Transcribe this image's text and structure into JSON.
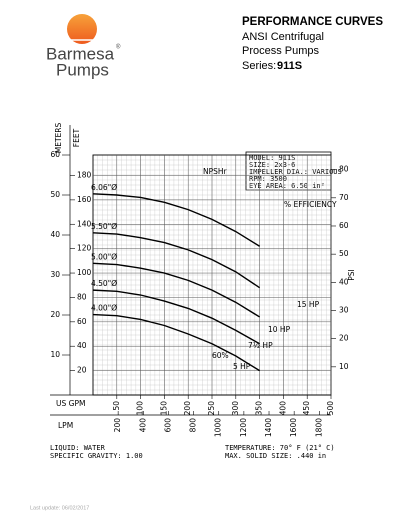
{
  "header": {
    "brand": "Barmesa",
    "reg": "®",
    "brand_sub": "Pumps",
    "title": "PERFORMANCE CURVES",
    "line1": "ANSI Centrifugal",
    "line2": "Process Pumps",
    "series_label": "Series:",
    "series_value": "911S"
  },
  "specs": [
    "MODEL: 911S",
    "SIZE: 2x3-6",
    "IMPELLER DIA.: VARIOUS",
    "RPM: 3500",
    "EYE AREA: 6.50 in²"
  ],
  "chart_data": {
    "type": "line",
    "x_label": "US GPM",
    "y_label": "FEET",
    "meters_label": "METERS",
    "psi_label": "PSI",
    "lpm_label": "LPM",
    "x": [
      0,
      50,
      100,
      150,
      200,
      250,
      300,
      350
    ],
    "series": [
      {
        "name": "6.06\"Ø",
        "color": "#000000",
        "values": [
          165,
          164,
          162,
          158,
          152,
          144,
          134,
          122
        ]
      },
      {
        "name": "5.50\"Ø",
        "color": "#000000",
        "values": [
          133,
          132,
          129,
          125,
          119,
          111,
          101,
          88
        ]
      },
      {
        "name": "5.00\"Ø",
        "color": "#000000",
        "values": [
          108,
          107,
          104,
          100,
          94,
          86,
          76,
          64
        ]
      },
      {
        "name": "4.50\"Ø",
        "color": "#000000",
        "values": [
          86,
          85,
          82,
          77,
          71,
          63,
          53,
          42
        ]
      },
      {
        "name": "4.00\"Ø",
        "color": "#000000",
        "values": [
          66,
          65,
          62,
          57,
          50,
          42,
          32,
          20
        ]
      }
    ],
    "xlim": [
      0,
      500
    ],
    "xticks": [
      50,
      100,
      150,
      200,
      250,
      300,
      350,
      400,
      450,
      500
    ],
    "ylim": [
      0,
      196.8
    ],
    "yticks": [
      20,
      40,
      60,
      80,
      100,
      120,
      140,
      160,
      180
    ],
    "meters_lim": [
      0,
      60
    ],
    "meters_ticks": [
      10,
      20,
      30,
      40,
      50,
      60
    ],
    "psi_lim": [
      0,
      85.2
    ],
    "psi_ticks": [
      10,
      20,
      30,
      40,
      50,
      60,
      70,
      80
    ],
    "lpm_lim": [
      0,
      1893
    ],
    "lpm_ticks": [
      200,
      400,
      600,
      800,
      1000,
      1200,
      1400,
      1600,
      1800
    ],
    "grid": true,
    "annotations": [
      "NPSHr",
      "% EFFICIENCY",
      "15 HP",
      "10 HP",
      "7½ HP",
      "5 HP",
      "60%"
    ]
  },
  "footer": {
    "liquid": "LIQUID: WATER",
    "gravity": "SPECIFIC GRAVITY: 1.00",
    "temperature": "TEMPERATURE: 70° F (21° C)",
    "solid": "MAX. SOLID SIZE: .440 in",
    "updated": "Last update: 06/02/2017"
  }
}
